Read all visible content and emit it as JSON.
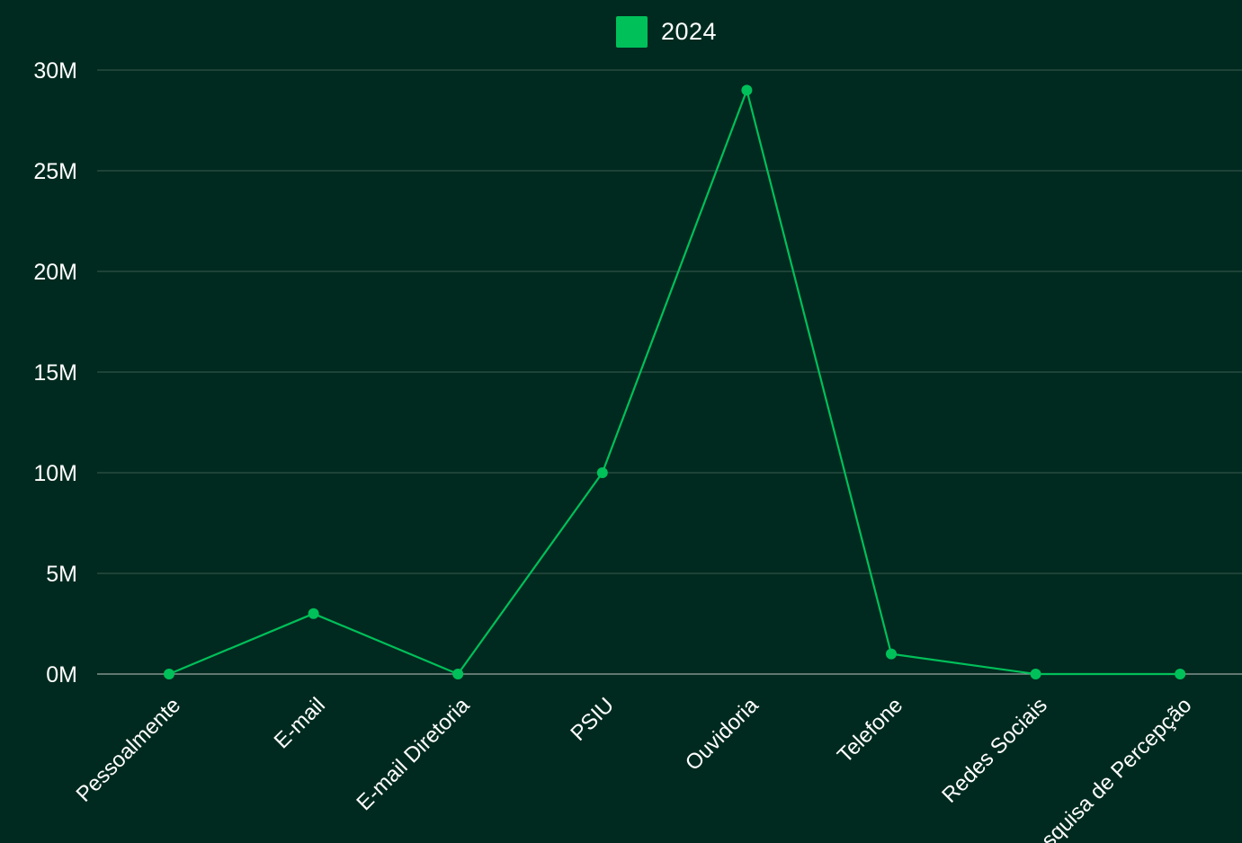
{
  "colors": {
    "background": "#002a1f",
    "gridline": "#3c5a50",
    "baseline": "#9aa8a2",
    "series": "#00c05a",
    "text": "#ffffff"
  },
  "chart_data": {
    "type": "line",
    "categories": [
      "Pessoalmente",
      "E-mail",
      "E-mail Diretoria",
      "PSIU",
      "Ouvidoria",
      "Telefone",
      "Redes Sociais",
      "Pesquisa de Percepção"
    ],
    "series": [
      {
        "name": "2024",
        "values": [
          0,
          3000000,
          0,
          10000000,
          29000000,
          1000000,
          0,
          0
        ]
      }
    ],
    "yticks": [
      {
        "value": 0,
        "label": "0M"
      },
      {
        "value": 5000000,
        "label": "5M"
      },
      {
        "value": 10000000,
        "label": "10M"
      },
      {
        "value": 15000000,
        "label": "15M"
      },
      {
        "value": 20000000,
        "label": "20M"
      },
      {
        "value": 25000000,
        "label": "25M"
      },
      {
        "value": 30000000,
        "label": "30M"
      }
    ],
    "ylim": [
      0,
      30000000
    ],
    "grid": true,
    "legend_position": "top-center",
    "title": "",
    "xlabel": "",
    "ylabel": ""
  }
}
